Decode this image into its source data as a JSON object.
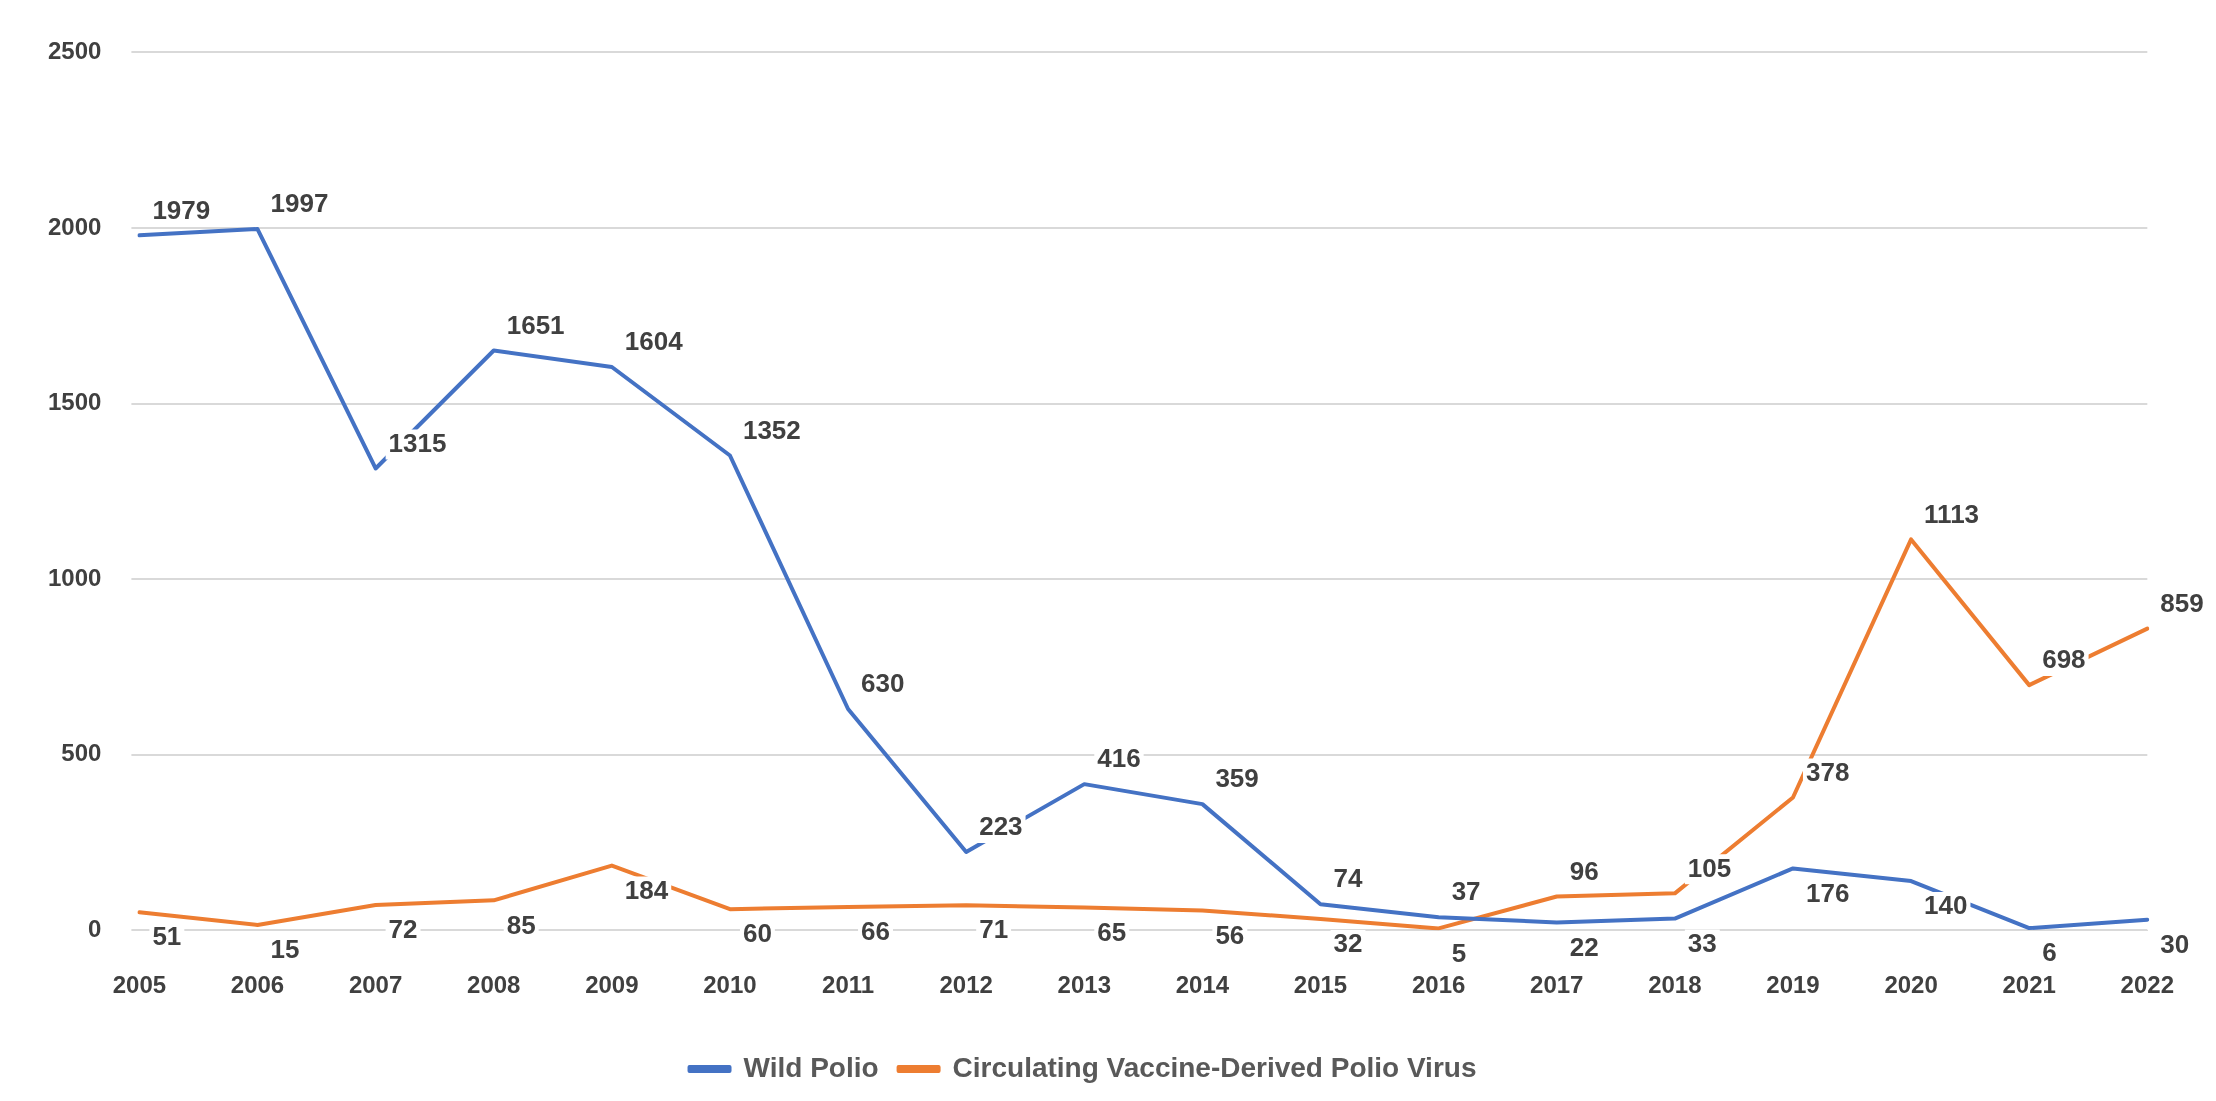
{
  "chart_data": {
    "type": "line",
    "categories": [
      "2005",
      "2006",
      "2007",
      "2008",
      "2009",
      "2010",
      "2011",
      "2012",
      "2013",
      "2014",
      "2015",
      "2016",
      "2017",
      "2018",
      "2019",
      "2020",
      "2021",
      "2022"
    ],
    "series": [
      {
        "name": "Wild Polio",
        "color": "#4472c4",
        "values": [
          1979,
          1997,
          1315,
          1651,
          1604,
          1352,
          630,
          223,
          416,
          359,
          74,
          37,
          22,
          33,
          176,
          140,
          6,
          30
        ]
      },
      {
        "name": "Circulating Vaccine-Derived Polio Virus",
        "color": "#ed7d31",
        "values": [
          51,
          15,
          72,
          85,
          184,
          60,
          66,
          71,
          65,
          56,
          32,
          5,
          96,
          105,
          378,
          1113,
          698,
          859
        ]
      }
    ],
    "ylim": [
      0,
      2500
    ],
    "yticks": [
      0,
      500,
      1000,
      1500,
      2000,
      2500
    ],
    "grid": "y",
    "legend": "bottom",
    "marker": "none",
    "line_style": "solid",
    "data_labels": true
  }
}
